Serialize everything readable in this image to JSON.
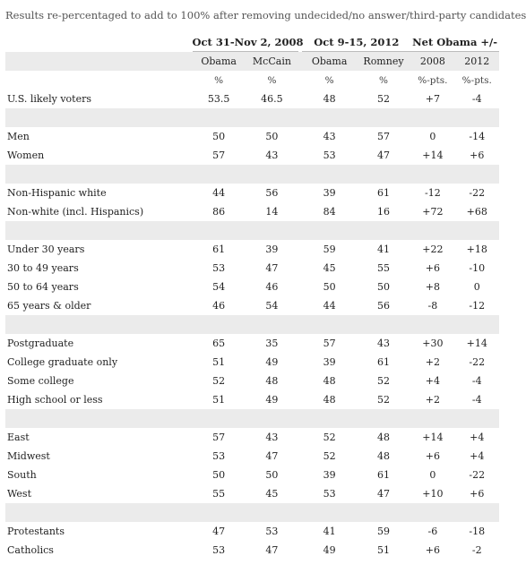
{
  "subtitle": "Results re-percentaged to add to 100% after removing undecided/no answer/third-party candidates",
  "headers": {
    "group_2008": "Oct 31-Nov 2, 2008",
    "group_2012": "Oct 9-15, 2012",
    "group_net": "Net Obama +/-",
    "obama_2008": "Obama",
    "mccain_2008": "McCain",
    "obama_2012": "Obama",
    "romney_2012": "Romney",
    "net_2008": "2008",
    "net_2012": "2012",
    "unit_pct": "%",
    "unit_pts": "%-pts."
  },
  "rows": [
    {
      "label": "U.S. likely voters",
      "obama_2008": "53.5",
      "mccain_2008": "46.5",
      "obama_2012": "48",
      "romney_2012": "52",
      "net_2008": "+7",
      "net_2012": "-4"
    },
    {
      "label": "Men",
      "obama_2008": "50",
      "mccain_2008": "50",
      "obama_2012": "43",
      "romney_2012": "57",
      "net_2008": "0",
      "net_2012": "-14"
    },
    {
      "label": "Women",
      "obama_2008": "57",
      "mccain_2008": "43",
      "obama_2012": "53",
      "romney_2012": "47",
      "net_2008": "+14",
      "net_2012": "+6"
    },
    {
      "label": "Non-Hispanic white",
      "obama_2008": "44",
      "mccain_2008": "56",
      "obama_2012": "39",
      "romney_2012": "61",
      "net_2008": "-12",
      "net_2012": "-22"
    },
    {
      "label": "Non-white (incl. Hispanics)",
      "obama_2008": "86",
      "mccain_2008": "14",
      "obama_2012": "84",
      "romney_2012": "16",
      "net_2008": "+72",
      "net_2012": "+68"
    },
    {
      "label": "Under 30 years",
      "obama_2008": "61",
      "mccain_2008": "39",
      "obama_2012": "59",
      "romney_2012": "41",
      "net_2008": "+22",
      "net_2012": "+18"
    },
    {
      "label": "30 to 49 years",
      "obama_2008": "53",
      "mccain_2008": "47",
      "obama_2012": "45",
      "romney_2012": "55",
      "net_2008": "+6",
      "net_2012": "-10"
    },
    {
      "label": "50 to 64 years",
      "obama_2008": "54",
      "mccain_2008": "46",
      "obama_2012": "50",
      "romney_2012": "50",
      "net_2008": "+8",
      "net_2012": "0"
    },
    {
      "label": "65 years & older",
      "obama_2008": "46",
      "mccain_2008": "54",
      "obama_2012": "44",
      "romney_2012": "56",
      "net_2008": "-8",
      "net_2012": "-12"
    },
    {
      "label": "Postgraduate",
      "obama_2008": "65",
      "mccain_2008": "35",
      "obama_2012": "57",
      "romney_2012": "43",
      "net_2008": "+30",
      "net_2012": "+14"
    },
    {
      "label": "College graduate only",
      "obama_2008": "51",
      "mccain_2008": "49",
      "obama_2012": "39",
      "romney_2012": "61",
      "net_2008": "+2",
      "net_2012": "-22"
    },
    {
      "label": "Some college",
      "obama_2008": "52",
      "mccain_2008": "48",
      "obama_2012": "48",
      "romney_2012": "52",
      "net_2008": "+4",
      "net_2012": "-4"
    },
    {
      "label": "High school or less",
      "obama_2008": "51",
      "mccain_2008": "49",
      "obama_2012": "48",
      "romney_2012": "52",
      "net_2008": "+2",
      "net_2012": "-4"
    },
    {
      "label": "East",
      "obama_2008": "57",
      "mccain_2008": "43",
      "obama_2012": "52",
      "romney_2012": "48",
      "net_2008": "+14",
      "net_2012": "+4"
    },
    {
      "label": "Midwest",
      "obama_2008": "53",
      "mccain_2008": "47",
      "obama_2012": "52",
      "romney_2012": "48",
      "net_2008": "+6",
      "net_2012": "+4"
    },
    {
      "label": "South",
      "obama_2008": "50",
      "mccain_2008": "50",
      "obama_2012": "39",
      "romney_2012": "61",
      "net_2008": "0",
      "net_2012": "-22"
    },
    {
      "label": "West",
      "obama_2008": "55",
      "mccain_2008": "45",
      "obama_2012": "53",
      "romney_2012": "47",
      "net_2008": "+10",
      "net_2012": "+6"
    },
    {
      "label": "Protestants",
      "obama_2008": "47",
      "mccain_2008": "53",
      "obama_2012": "41",
      "romney_2012": "59",
      "net_2008": "-6",
      "net_2012": "-18"
    },
    {
      "label": "Catholics",
      "obama_2008": "53",
      "mccain_2008": "47",
      "obama_2012": "49",
      "romney_2012": "51",
      "net_2008": "+6",
      "net_2012": "-2"
    }
  ]
}
